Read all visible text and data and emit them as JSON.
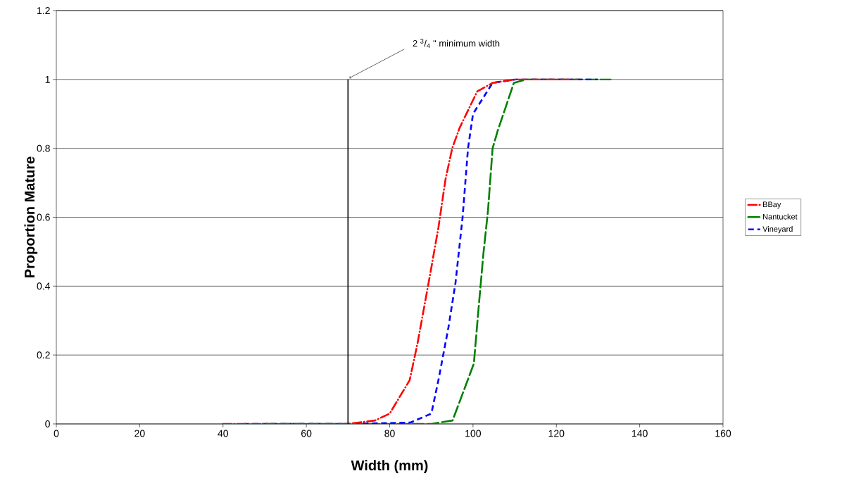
{
  "chart_data": {
    "type": "line",
    "xlabel": "Width (mm)",
    "ylabel": "Proportion Mature",
    "xlim": [
      0,
      160
    ],
    "xticks": [
      0,
      20,
      40,
      60,
      80,
      100,
      120,
      140,
      160
    ],
    "ylim": [
      0,
      1.2
    ],
    "yticks": [
      0,
      0.2,
      0.4,
      0.6,
      0.8,
      1,
      1.2
    ],
    "grid": "y",
    "legend": "right",
    "annotations": [
      {
        "text": "2 $^{3}$/$_{4}$ \"  minimum width",
        "x": 70,
        "y": 1
      }
    ],
    "series": [
      {
        "name": "BBay",
        "color": "#ff0000",
        "line_style": "dashdot",
        "x": [
          40,
          60,
          70,
          76.5,
          80,
          84.8,
          86.7,
          89.5,
          91.7,
          93.4,
          95,
          96.8,
          101,
          104.7,
          110,
          125
        ],
        "values": [
          0,
          0,
          0,
          0.01,
          0.03,
          0.127,
          0.235,
          0.42,
          0.57,
          0.71,
          0.8,
          0.86,
          0.965,
          0.99,
          1,
          1
        ]
      },
      {
        "name": "Nantucket",
        "color": "#008000",
        "line_style": "longdash",
        "x": [
          50,
          70,
          90,
          95.1,
          96.8,
          100.2,
          101.4,
          102.5,
          103.6,
          104.7,
          105.9,
          109.8,
          112.7,
          133
        ],
        "values": [
          0,
          0,
          0,
          0.01,
          0.065,
          0.175,
          0.345,
          0.495,
          0.62,
          0.8,
          0.85,
          0.99,
          1,
          1
        ]
      },
      {
        "name": "Vineyard",
        "color": "#0000ff",
        "line_style": "dashed",
        "x": [
          45,
          70,
          85,
          90,
          91.7,
          94.1,
          95.8,
          97.5,
          98.8,
          100,
          104.7,
          110.3,
          130
        ],
        "values": [
          0,
          0,
          0.004,
          0.03,
          0.127,
          0.28,
          0.41,
          0.6,
          0.8,
          0.9,
          0.99,
          1,
          1
        ]
      },
      {
        "color": "#000000",
        "line_style": "solid",
        "x": [
          70,
          70
        ],
        "values": [
          0,
          1
        ]
      }
    ]
  }
}
